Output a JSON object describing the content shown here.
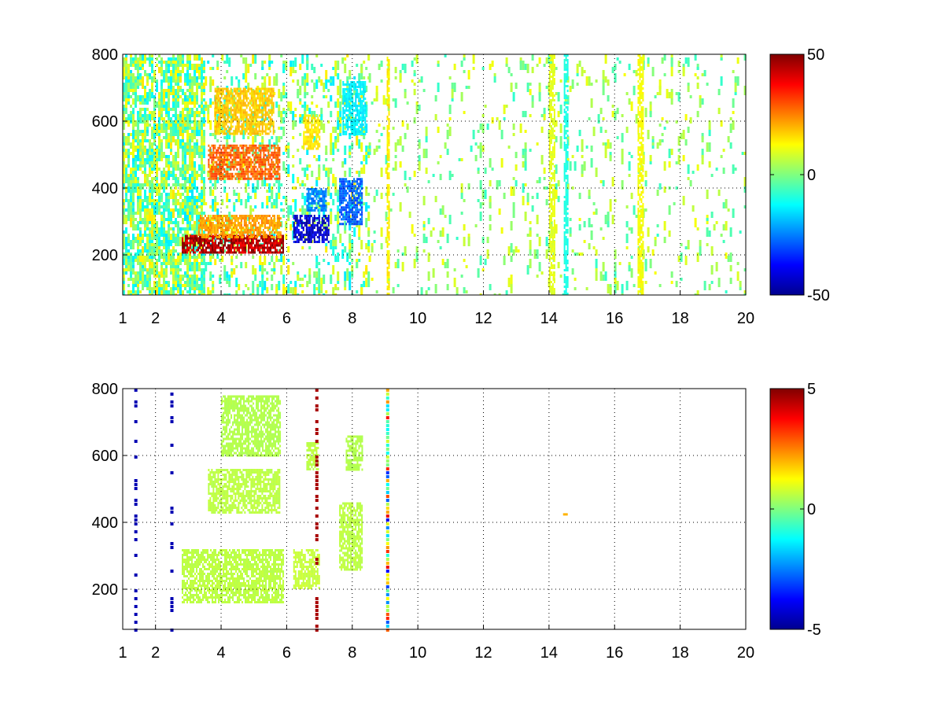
{
  "chart_data": [
    {
      "type": "heatmap",
      "title": "",
      "xlabel": "",
      "ylabel": "",
      "xlim": [
        1,
        20
      ],
      "ylim": [
        80,
        800
      ],
      "grid": true,
      "colormap": "jet",
      "x_ticks": [
        1,
        2,
        4,
        6,
        8,
        10,
        12,
        14,
        16,
        18,
        20
      ],
      "x_tick_labels": [
        "1",
        "2",
        "4",
        "6",
        "8",
        "10",
        "12",
        "14",
        "16",
        "18",
        "20"
      ],
      "y_ticks": [
        200,
        400,
        600,
        800
      ],
      "y_tick_labels": [
        "200",
        "400",
        "600",
        "800"
      ],
      "colorbar": {
        "min": -50,
        "max": 50,
        "ticks": [
          50,
          0,
          -50
        ],
        "tick_labels": [
          "50",
          "0",
          "-50"
        ]
      },
      "features": [
        {
          "x0": 2.8,
          "x1": 5.9,
          "y0": 205,
          "y1": 260,
          "value": 45
        },
        {
          "x0": 3.3,
          "x1": 5.8,
          "y0": 255,
          "y1": 320,
          "value": 22
        },
        {
          "x0": 3.6,
          "x1": 5.8,
          "y0": 430,
          "y1": 530,
          "value": 28
        },
        {
          "x0": 3.8,
          "x1": 5.6,
          "y0": 560,
          "y1": 700,
          "value": 18
        },
        {
          "x0": 6.2,
          "x1": 7.3,
          "y0": 240,
          "y1": 320,
          "value": -42
        },
        {
          "x0": 6.6,
          "x1": 7.2,
          "y0": 330,
          "y1": 400,
          "value": -25
        },
        {
          "x0": 7.6,
          "x1": 8.3,
          "y0": 290,
          "y1": 430,
          "value": -28
        },
        {
          "x0": 6.5,
          "x1": 7.0,
          "y0": 520,
          "y1": 620,
          "value": 15
        },
        {
          "x0": 7.7,
          "x1": 8.4,
          "y0": 560,
          "y1": 720,
          "value": -14
        },
        {
          "x0": 9.05,
          "x1": 9.12,
          "y0": 80,
          "y1": 800,
          "value": 14
        },
        {
          "x0": 14.45,
          "x1": 14.55,
          "y0": 80,
          "y1": 800,
          "value": -10
        },
        {
          "x0": 14.0,
          "x1": 14.15,
          "y0": 80,
          "y1": 800,
          "value": 10
        },
        {
          "x0": 16.7,
          "x1": 16.85,
          "y0": 80,
          "y1": 800,
          "value": 12
        }
      ],
      "noise": [
        {
          "x0": 1.0,
          "x1": 3.5,
          "density": 0.55,
          "value_range": [
            -15,
            15
          ]
        },
        {
          "x0": 3.5,
          "x1": 8.5,
          "density": 0.18,
          "value_range": [
            -15,
            15
          ]
        },
        {
          "x0": 8.5,
          "x1": 20.0,
          "density": 0.06,
          "value_range": [
            -8,
            12
          ]
        }
      ]
    },
    {
      "type": "heatmap",
      "title": "",
      "xlabel": "",
      "ylabel": "",
      "xlim": [
        1,
        20
      ],
      "ylim": [
        80,
        800
      ],
      "grid": true,
      "colormap": "jet",
      "x_ticks": [
        1,
        2,
        4,
        6,
        8,
        10,
        12,
        14,
        16,
        18,
        20
      ],
      "x_tick_labels": [
        "1",
        "2",
        "4",
        "6",
        "8",
        "10",
        "12",
        "14",
        "16",
        "18",
        "20"
      ],
      "y_ticks": [
        200,
        400,
        600,
        800
      ],
      "y_tick_labels": [
        "200",
        "400",
        "600",
        "800"
      ],
      "colorbar": {
        "min": -5,
        "max": 5,
        "ticks": [
          5,
          0,
          -5
        ],
        "tick_labels": [
          "5",
          "0",
          "-5"
        ]
      },
      "features": [
        {
          "x0": 2.8,
          "x1": 5.9,
          "y0": 160,
          "y1": 320,
          "value": 0.6
        },
        {
          "x0": 3.6,
          "x1": 5.8,
          "y0": 430,
          "y1": 560,
          "value": 0.6
        },
        {
          "x0": 4.0,
          "x1": 5.8,
          "y0": 600,
          "y1": 780,
          "value": 0.5
        },
        {
          "x0": 6.2,
          "x1": 7.0,
          "y0": 200,
          "y1": 320,
          "value": 0.7
        },
        {
          "x0": 7.6,
          "x1": 8.3,
          "y0": 260,
          "y1": 460,
          "value": 0.6
        },
        {
          "x0": 7.8,
          "x1": 8.3,
          "y0": 560,
          "y1": 660,
          "value": 0.5
        },
        {
          "x0": 6.6,
          "x1": 6.95,
          "y0": 560,
          "y1": 640,
          "value": 0.6
        }
      ],
      "lines": [
        {
          "x": 9.08,
          "kind": "mixed"
        },
        {
          "x": 6.92,
          "kind": "red"
        },
        {
          "x": 1.4,
          "kind": "blue"
        },
        {
          "x": 2.5,
          "kind": "blue"
        }
      ],
      "spots": [
        {
          "x": 14.5,
          "y": 425,
          "value": 2
        }
      ]
    }
  ]
}
